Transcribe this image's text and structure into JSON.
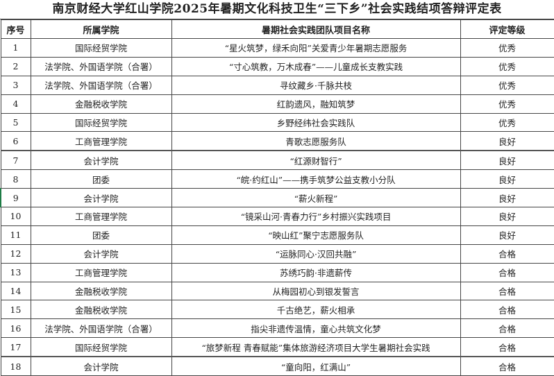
{
  "title": "南京财经大学红山学院2025年暑期文化科技卫生“三下乡”社会实践结项答辩评定表",
  "headers": [
    "序号",
    "所属学院",
    "暑期社会实践团队项目名称",
    "评定等级"
  ],
  "rows": [
    [
      "1",
      "国际经贸学院",
      "“星火筑梦，绿禾向阳”关爱青少年暑期志愿服务",
      "优秀"
    ],
    [
      "2",
      "法学院、外国语学院（合署）",
      "“寸心筑教，万木成春”——儿童成长支教实践",
      "优秀"
    ],
    [
      "3",
      "法学院、外国语学院（合署）",
      "寻纹藏乡·千脉共枝",
      "优秀"
    ],
    [
      "4",
      "金融税收学院",
      "红韵遗风，融知筑梦",
      "优秀"
    ],
    [
      "5",
      "国际经贸学院",
      "乡野经纬社会实践队",
      "优秀"
    ],
    [
      "6",
      "工商管理学院",
      "青歌志愿服务队",
      "良好"
    ],
    [
      "7",
      "会计学院",
      "“红源财智行”",
      "良好"
    ],
    [
      "8",
      "团委",
      "“皖·约红山”——携手筑梦公益支教小分队",
      "良好"
    ],
    [
      "9",
      "会计学院",
      "“薪火新程”",
      "良好"
    ],
    [
      "10",
      "工商管理学院",
      "“镜采山河·青春力行”乡村振兴实践项目",
      "良好"
    ],
    [
      "11",
      "团委",
      "“映山红”聚宁志愿服务队",
      "良好"
    ],
    [
      "12",
      "会计学院",
      "“运脉同心·汉回共融”",
      "合格"
    ],
    [
      "13",
      "工商管理学院",
      "苏绣巧韵·非遗薪传",
      "合格"
    ],
    [
      "14",
      "金融税收学院",
      "从梅园初心到银发誓言",
      "合格"
    ],
    [
      "15",
      "金融税收学院",
      "千古绝艺，薪火相承",
      "合格"
    ],
    [
      "16",
      "法学院、外国语学院（合署）",
      "指尖非遗传温情，童心共筑文化梦",
      "合格"
    ],
    [
      "17",
      "国际经贸学院",
      "“旅梦新程 青春赋能”集体旅游经济项目大学生暑期社会实践",
      "合格"
    ],
    [
      "18",
      "会计学院",
      "“童向阳，红满山”",
      "合格"
    ]
  ]
}
